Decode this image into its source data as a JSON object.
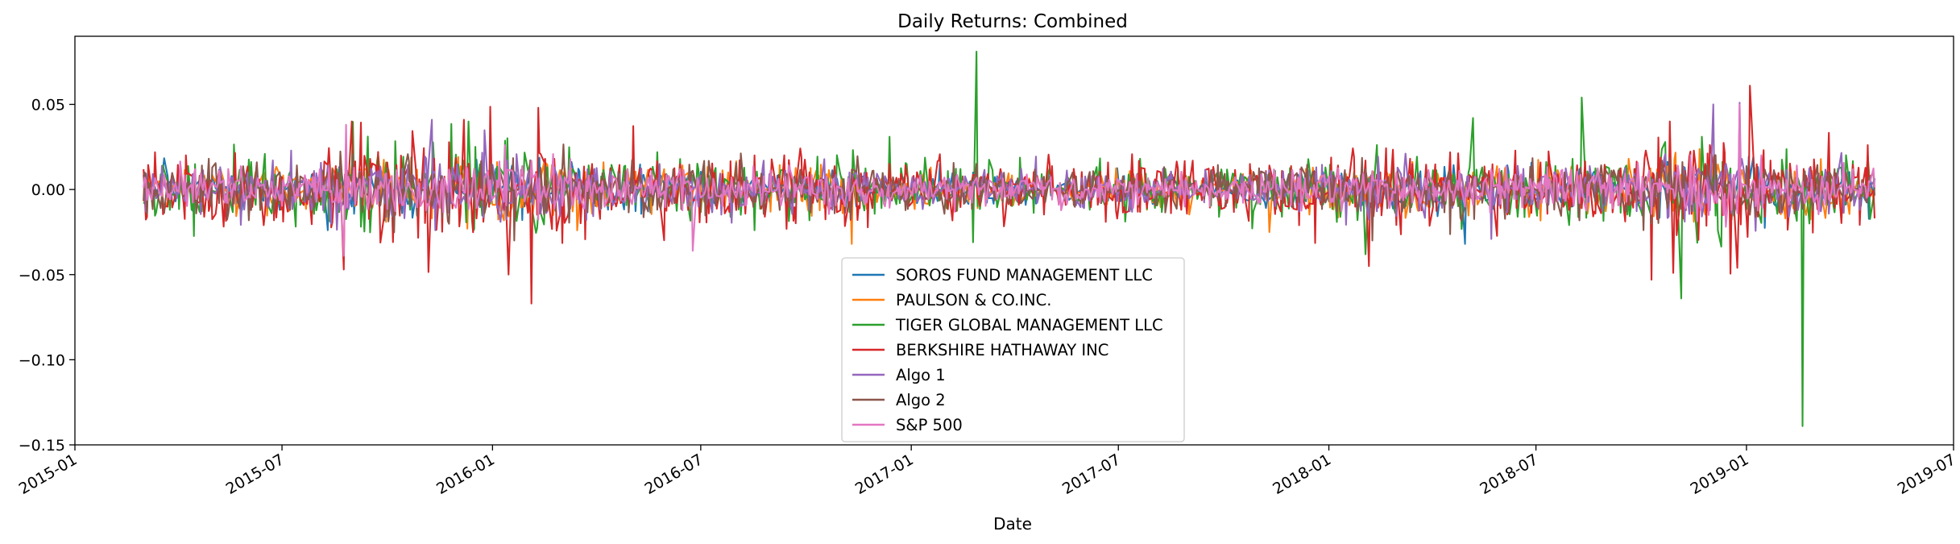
{
  "chart_data": {
    "type": "line",
    "title": "Daily Returns: Combined",
    "xlabel": "Date",
    "ylabel": "",
    "x_range": [
      "2015-01-01",
      "2019-07-01"
    ],
    "x_start": "2015-03-02",
    "x_end": "2019-04-23",
    "ylim": [
      -0.15,
      0.09
    ],
    "yticks": [
      0.05,
      0.0,
      -0.05,
      -0.1,
      -0.15
    ],
    "ytick_labels": [
      "0.05",
      "0.00",
      "−0.05",
      "−0.10",
      "−0.15"
    ],
    "xticks": [
      "2015-01-01",
      "2015-07-01",
      "2016-01-01",
      "2016-07-01",
      "2017-01-01",
      "2017-07-01",
      "2018-01-01",
      "2018-07-01",
      "2019-01-01",
      "2019-07-01"
    ],
    "xtick_labels": [
      "2015-01",
      "2015-07",
      "2016-01",
      "2016-07",
      "2017-01",
      "2017-07",
      "2018-01",
      "2018-07",
      "2019-01",
      "2019-07"
    ],
    "legend_position": "lower-center",
    "grid": false,
    "series": [
      {
        "name": "SOROS FUND MANAGEMENT LLC",
        "color": "#1f77b4",
        "amplitude": 0.006,
        "spikes": [
          [
            "2017-01-26",
            0.015
          ],
          [
            "2018-04-30",
            -0.032
          ]
        ]
      },
      {
        "name": "PAULSON & CO.INC.",
        "color": "#ff7f0e",
        "amplitude": 0.007,
        "spikes": [
          [
            "2016-11-10",
            -0.032
          ],
          [
            "2017-11-10",
            -0.025
          ],
          [
            "2016-03-15",
            -0.024
          ]
        ]
      },
      {
        "name": "TIGER GLOBAL MANAGEMENT LLC",
        "color": "#2ca02c",
        "amplitude": 0.009,
        "spikes": [
          [
            "2017-02-27",
            0.081
          ],
          [
            "2017-02-24",
            -0.031
          ],
          [
            "2019-02-19",
            -0.139
          ],
          [
            "2019-02-25",
            -0.02
          ],
          [
            "2018-08-10",
            0.054
          ],
          [
            "2018-05-07",
            0.042
          ],
          [
            "2018-11-05",
            -0.064
          ],
          [
            "2018-02-02",
            -0.038
          ],
          [
            "2016-12-13",
            0.031
          ]
        ]
      },
      {
        "name": "BERKSHIRE HATHAWAY INC",
        "color": "#d62728",
        "amplitude": 0.011,
        "spikes": [
          [
            "2016-02-04",
            -0.067
          ],
          [
            "2016-02-10",
            0.048
          ],
          [
            "2015-08-24",
            -0.047
          ],
          [
            "2015-08-31",
            0.04
          ],
          [
            "2016-01-15",
            -0.05
          ],
          [
            "2015-12-07",
            0.041
          ],
          [
            "2019-01-04",
            0.061
          ],
          [
            "2018-10-10",
            -0.053
          ],
          [
            "2018-10-29",
            -0.049
          ],
          [
            "2018-12-24",
            -0.046
          ],
          [
            "2018-02-05",
            -0.045
          ],
          [
            "2018-10-26",
            0.04
          ]
        ]
      },
      {
        "name": "Algo 1",
        "color": "#9467bd",
        "amplitude": 0.007,
        "spikes": [
          [
            "2015-11-09",
            0.041
          ],
          [
            "2018-12-03",
            0.05
          ],
          [
            "2018-12-26",
            0.051
          ]
        ]
      },
      {
        "name": "Algo 2",
        "color": "#8c564b",
        "amplitude": 0.007,
        "spikes": [
          [
            "2016-01-20",
            -0.03
          ],
          [
            "2018-02-08",
            -0.03
          ]
        ]
      },
      {
        "name": "S&P 500",
        "color": "#e377c2",
        "amplitude": 0.006,
        "spikes": [
          [
            "2015-08-24",
            -0.039
          ],
          [
            "2015-08-26",
            0.038
          ],
          [
            "2016-06-24",
            -0.036
          ],
          [
            "2018-12-26",
            0.05
          ],
          [
            "2016-01-12",
            0.026
          ]
        ]
      }
    ]
  }
}
